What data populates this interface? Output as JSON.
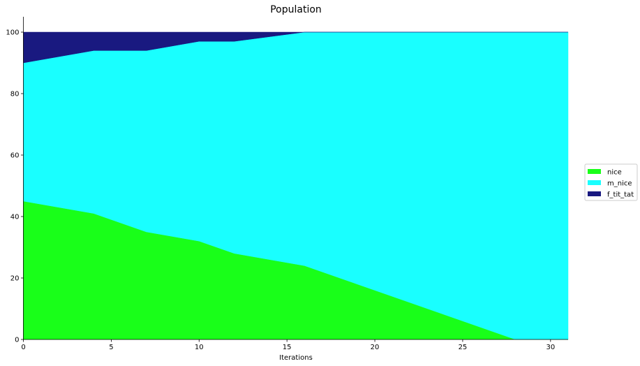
{
  "chart_data": {
    "type": "area",
    "stacked": true,
    "title": "Population",
    "xlabel": "Iterations",
    "ylabel": "",
    "xlim": [
      0,
      31
    ],
    "ylim": [
      0,
      105
    ],
    "xticks": [
      0,
      5,
      10,
      15,
      20,
      25,
      30
    ],
    "yticks": [
      0,
      20,
      40,
      60,
      80,
      100
    ],
    "grid": false,
    "legend_position": "right",
    "x": [
      0,
      4,
      7,
      10,
      12,
      16,
      20,
      25,
      28,
      31
    ],
    "series": [
      {
        "name": "nice",
        "color": "#19ff19",
        "values": [
          45,
          41,
          35,
          32,
          28,
          24,
          16,
          6,
          0,
          0
        ]
      },
      {
        "name": "m_nice",
        "color": "#19ffff",
        "values": [
          45,
          53,
          59,
          65,
          69,
          76,
          84,
          94,
          100,
          100
        ]
      },
      {
        "name": "f_tit_tat",
        "color": "#191980",
        "values": [
          10,
          6,
          6,
          3,
          3,
          0,
          0,
          0,
          0,
          0
        ]
      }
    ]
  }
}
